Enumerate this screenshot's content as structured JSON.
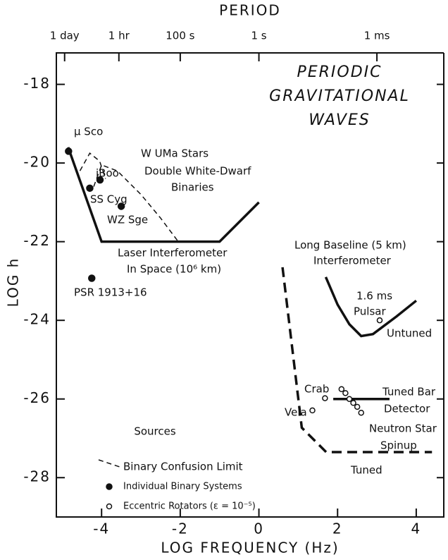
{
  "chart_data": {
    "type": "line",
    "title": [
      "PERIODIC",
      "GRAVITATIONAL",
      "WAVES"
    ],
    "x_label": "LOG FREQUENCY (Hz)",
    "y_label": "LOG h",
    "x2_label": "PERIOD",
    "xlim": [
      -5.15,
      4.7
    ],
    "ylim": [
      -29,
      -17.2
    ],
    "xticks": [
      -4,
      -2,
      0,
      2,
      4
    ],
    "yticks": [
      -18,
      -20,
      -22,
      -24,
      -26,
      -28
    ],
    "x2ticks": [
      {
        "value": -4.94,
        "label": "1 day"
      },
      {
        "value": -3.56,
        "label": "1 hr"
      },
      {
        "value": -2,
        "label": "100 s"
      },
      {
        "value": 0,
        "label": "1 s"
      },
      {
        "value": 3,
        "label": "1 ms"
      }
    ],
    "color": "#111111",
    "series": [
      {
        "x": [
          -4.85,
          -4,
          -1,
          0
        ],
        "y": [
          -19.6,
          -22,
          -22,
          -21
        ],
        "dashed": false
      },
      {
        "name": "Binary Confusion Limit",
        "x": [
          -4.55,
          -4.3,
          -4.05,
          -3.9,
          null,
          -4.2,
          -4.0,
          -3.6,
          -3.0,
          -2.5,
          -2.05
        ],
        "y": [
          -20.2,
          -19.75,
          -19.95,
          -20.4,
          null,
          -20.6,
          -20.05,
          -20.2,
          -20.8,
          -21.4,
          -22
        ],
        "dashed": true,
        "thin": true
      },
      {
        "x": [
          1.7,
          2.0,
          2.3,
          2.6,
          2.9,
          3.5,
          4.0
        ],
        "y": [
          -22.9,
          -23.6,
          -24.1,
          -24.4,
          -24.35,
          -23.9,
          -23.5
        ],
        "dashed": false
      },
      {
        "x": [
          0.6,
          1.09,
          1.71,
          4.4
        ],
        "y": [
          -22.65,
          -26.73,
          -27.35,
          -27.35
        ],
        "dashed": true
      },
      {
        "x": [
          1.89,
          3.32
        ],
        "y": [
          -26,
          -26
        ],
        "dashed": false
      }
    ],
    "points": [
      {
        "name": "Individual Binary Systems",
        "filled": true,
        "x": [
          -4.84,
          -4.04,
          -4.3,
          -3.5,
          -4.25
        ],
        "y": [
          -19.7,
          -20.43,
          -20.64,
          -21.1,
          -22.93
        ]
      },
      {
        "name": "Eccentric Rotators (ε = 10⁻⁵)",
        "filled": false,
        "x": [
          3.07,
          1.68,
          1.36,
          2.1,
          2.2,
          2.3,
          2.4,
          2.5,
          2.6
        ],
        "y": [
          -24,
          -25.98,
          -26.29,
          -25.75,
          -25.85,
          -26.0,
          -26.1,
          -26.2,
          -26.35
        ]
      }
    ],
    "legend_title": "Sources",
    "annotations": [
      "μ Sco",
      "W UMa Stars",
      "Double White-Dwarf",
      "Binaries",
      "iBoo",
      "SS Cyg",
      "WZ Sge",
      "Laser Interferometer",
      "In Space (10⁶ km)",
      "PSR 1913+16",
      "Long Baseline (5 km)",
      "Interferometer",
      "1.6 ms",
      "Pulsar",
      "Untuned",
      "Crab",
      "Vela",
      "Tuned Bar",
      "Detector",
      "Neutron Star",
      "Spinup",
      "Tuned"
    ]
  }
}
